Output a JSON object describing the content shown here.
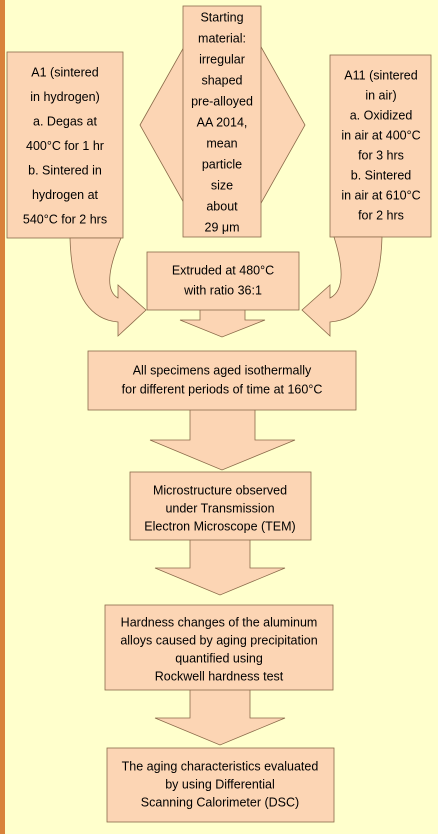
{
  "nodes": [
    {
      "lines": [
        "Starting",
        "material:",
        "irregular",
        "shaped",
        "pre-alloyed",
        "AA 2014,",
        "mean",
        "particle",
        "size",
        "about",
        "29 μm"
      ]
    },
    {
      "lines": [
        "A1 (sintered",
        "in hydrogen)",
        "a. Degas at",
        "400°C for 1 hr",
        "b. Sintered in",
        "hydrogen at",
        "540°C for 2 hrs"
      ]
    },
    {
      "lines": [
        "A11 (sintered",
        "in air)",
        "a.  Oxidized",
        "in air at 400°C",
        "for 3 hrs",
        "b. Sintered",
        "in air at 610°C",
        "for 2 hrs"
      ]
    },
    {
      "lines": [
        "Extruded at 480°C",
        "with ratio 36:1"
      ]
    },
    {
      "lines": [
        "All specimens aged isothermally",
        "for different periods of time at 160°C"
      ]
    },
    {
      "lines": [
        "Microstructure observed",
        "under Transmission",
        "Electron Microscope (TEM)"
      ]
    },
    {
      "lines": [
        "Hardness changes of the aluminum",
        "alloys caused by aging precipitation",
        "quantified using",
        "Rockwell hardness test"
      ]
    },
    {
      "lines": [
        "The aging characteristics evaluated",
        "by using Differential",
        "Scanning Calorimeter (DSC)"
      ]
    }
  ]
}
